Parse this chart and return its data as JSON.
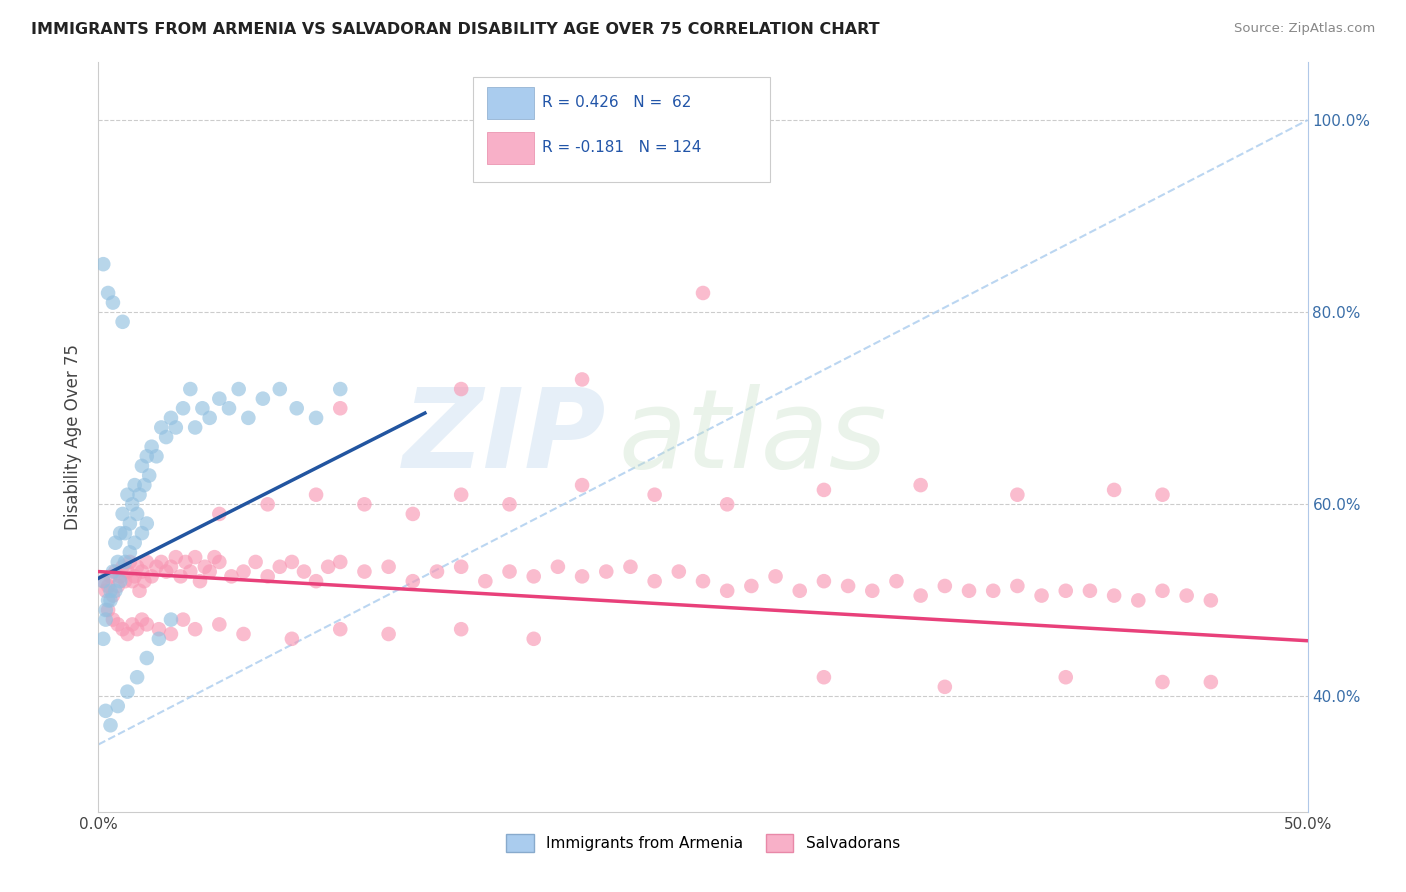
{
  "title": "IMMIGRANTS FROM ARMENIA VS SALVADORAN DISABILITY AGE OVER 75 CORRELATION CHART",
  "source": "Source: ZipAtlas.com",
  "ylabel": "Disability Age Over 75",
  "legend_label1": "Immigrants from Armenia",
  "legend_label2": "Salvadorans",
  "R_armenia": 0.426,
  "N_armenia": 62,
  "R_salvadoran": -0.181,
  "N_salvadoran": 124,
  "scatter_color_armenia": "#92c0e0",
  "scatter_color_salvadoran": "#f898b4",
  "line_color_armenia": "#2255a0",
  "line_color_salvadoran": "#e8407a",
  "dashed_line_color": "#aaccee",
  "background_color": "#ffffff",
  "xlim": [
    0.0,
    0.5
  ],
  "ylim": [
    0.28,
    1.06
  ],
  "yticks": [
    0.4,
    0.6,
    0.8,
    1.0
  ],
  "xticks": [
    0.0,
    0.1,
    0.2,
    0.3,
    0.4,
    0.5
  ],
  "armenia_line_x0": 0.0,
  "armenia_line_y0": 0.523,
  "armenia_line_x1": 0.135,
  "armenia_line_y1": 0.695,
  "salvadoran_line_x0": 0.0,
  "salvadoran_line_y0": 0.53,
  "salvadoran_line_x1": 0.5,
  "salvadoran_line_y1": 0.458,
  "armenia_x": [
    0.002,
    0.003,
    0.004,
    0.005,
    0.006,
    0.007,
    0.008,
    0.009,
    0.01,
    0.011,
    0.012,
    0.013,
    0.014,
    0.015,
    0.016,
    0.017,
    0.018,
    0.019,
    0.02,
    0.021,
    0.022,
    0.024,
    0.026,
    0.028,
    0.03,
    0.032,
    0.035,
    0.038,
    0.04,
    0.043,
    0.046,
    0.05,
    0.054,
    0.058,
    0.062,
    0.068,
    0.075,
    0.082,
    0.09,
    0.1,
    0.002,
    0.003,
    0.005,
    0.007,
    0.009,
    0.011,
    0.013,
    0.015,
    0.018,
    0.02,
    0.003,
    0.005,
    0.008,
    0.012,
    0.016,
    0.02,
    0.025,
    0.03,
    0.002,
    0.004,
    0.006,
    0.01
  ],
  "armenia_y": [
    0.52,
    0.49,
    0.5,
    0.51,
    0.53,
    0.56,
    0.54,
    0.57,
    0.59,
    0.57,
    0.61,
    0.58,
    0.6,
    0.62,
    0.59,
    0.61,
    0.64,
    0.62,
    0.65,
    0.63,
    0.66,
    0.65,
    0.68,
    0.67,
    0.69,
    0.68,
    0.7,
    0.72,
    0.68,
    0.7,
    0.69,
    0.71,
    0.7,
    0.72,
    0.69,
    0.71,
    0.72,
    0.7,
    0.69,
    0.72,
    0.46,
    0.48,
    0.5,
    0.51,
    0.52,
    0.54,
    0.55,
    0.56,
    0.57,
    0.58,
    0.385,
    0.37,
    0.39,
    0.405,
    0.42,
    0.44,
    0.46,
    0.48,
    0.85,
    0.82,
    0.81,
    0.79
  ],
  "salvadoran_x": [
    0.002,
    0.003,
    0.004,
    0.005,
    0.006,
    0.007,
    0.008,
    0.009,
    0.01,
    0.011,
    0.012,
    0.013,
    0.014,
    0.015,
    0.016,
    0.017,
    0.018,
    0.019,
    0.02,
    0.022,
    0.024,
    0.026,
    0.028,
    0.03,
    0.032,
    0.034,
    0.036,
    0.038,
    0.04,
    0.042,
    0.044,
    0.046,
    0.048,
    0.05,
    0.055,
    0.06,
    0.065,
    0.07,
    0.075,
    0.08,
    0.085,
    0.09,
    0.095,
    0.1,
    0.11,
    0.12,
    0.13,
    0.14,
    0.15,
    0.16,
    0.17,
    0.18,
    0.19,
    0.2,
    0.21,
    0.22,
    0.23,
    0.24,
    0.25,
    0.26,
    0.27,
    0.28,
    0.29,
    0.3,
    0.31,
    0.32,
    0.33,
    0.34,
    0.35,
    0.36,
    0.37,
    0.38,
    0.39,
    0.4,
    0.41,
    0.42,
    0.43,
    0.44,
    0.45,
    0.46,
    0.004,
    0.006,
    0.008,
    0.01,
    0.012,
    0.014,
    0.016,
    0.018,
    0.02,
    0.025,
    0.03,
    0.035,
    0.04,
    0.05,
    0.06,
    0.08,
    0.1,
    0.12,
    0.15,
    0.18,
    0.05,
    0.07,
    0.09,
    0.11,
    0.13,
    0.15,
    0.17,
    0.2,
    0.23,
    0.26,
    0.3,
    0.34,
    0.38,
    0.42,
    0.44,
    0.3,
    0.35,
    0.4,
    0.44,
    0.46,
    0.1,
    0.15,
    0.2,
    0.25
  ],
  "salvadoran_y": [
    0.52,
    0.51,
    0.515,
    0.525,
    0.505,
    0.53,
    0.515,
    0.525,
    0.535,
    0.52,
    0.53,
    0.54,
    0.52,
    0.525,
    0.535,
    0.51,
    0.53,
    0.52,
    0.54,
    0.525,
    0.535,
    0.54,
    0.53,
    0.535,
    0.545,
    0.525,
    0.54,
    0.53,
    0.545,
    0.52,
    0.535,
    0.53,
    0.545,
    0.54,
    0.525,
    0.53,
    0.54,
    0.525,
    0.535,
    0.54,
    0.53,
    0.52,
    0.535,
    0.54,
    0.53,
    0.535,
    0.52,
    0.53,
    0.535,
    0.52,
    0.53,
    0.525,
    0.535,
    0.525,
    0.53,
    0.535,
    0.52,
    0.53,
    0.52,
    0.51,
    0.515,
    0.525,
    0.51,
    0.52,
    0.515,
    0.51,
    0.52,
    0.505,
    0.515,
    0.51,
    0.51,
    0.515,
    0.505,
    0.51,
    0.51,
    0.505,
    0.5,
    0.51,
    0.505,
    0.5,
    0.49,
    0.48,
    0.475,
    0.47,
    0.465,
    0.475,
    0.47,
    0.48,
    0.475,
    0.47,
    0.465,
    0.48,
    0.47,
    0.475,
    0.465,
    0.46,
    0.47,
    0.465,
    0.47,
    0.46,
    0.59,
    0.6,
    0.61,
    0.6,
    0.59,
    0.61,
    0.6,
    0.62,
    0.61,
    0.6,
    0.615,
    0.62,
    0.61,
    0.615,
    0.61,
    0.42,
    0.41,
    0.42,
    0.415,
    0.415,
    0.7,
    0.72,
    0.73,
    0.82
  ]
}
